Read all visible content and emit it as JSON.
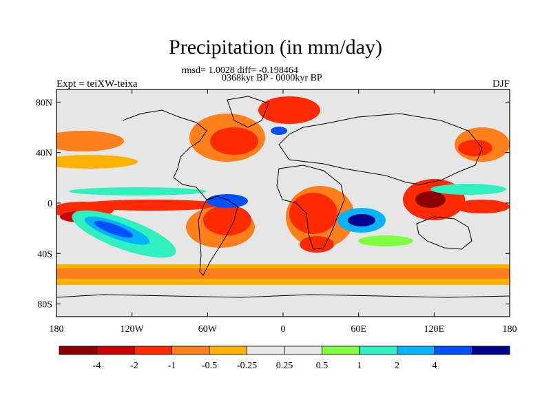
{
  "title": "Precipitation (in mm/day)",
  "subtitle_stats": "rmsd= 1.0028 diff= -0.198464",
  "subtitle_period": "0368kyr BP - 0000kyr BP",
  "experiment": "Expt = teiXW-teixa",
  "season": "DJF",
  "map": {
    "projection": "cylindrical equidistant",
    "lon_range": [
      -180,
      180
    ],
    "lat_range": [
      -90,
      90
    ],
    "background_color": "#e6e6e6",
    "lon_ticks": [
      {
        "value": -180,
        "label": "180"
      },
      {
        "value": -120,
        "label": "120W"
      },
      {
        "value": -60,
        "label": "60W"
      },
      {
        "value": 0,
        "label": "0"
      },
      {
        "value": 60,
        "label": "60E"
      },
      {
        "value": 120,
        "label": "120E"
      },
      {
        "value": 180,
        "label": "180"
      }
    ],
    "lat_ticks": [
      {
        "value": 80,
        "label": "80N"
      },
      {
        "value": 40,
        "label": "40N"
      },
      {
        "value": 0,
        "label": "0"
      },
      {
        "value": -40,
        "label": "40S"
      },
      {
        "value": -80,
        "label": "80S"
      }
    ]
  },
  "colorbar": {
    "colors": [
      "#8b0000",
      "#cc0000",
      "#ff2a00",
      "#ff7f1a",
      "#ffb300",
      "#e6e6e6",
      "#e6e6e6",
      "#80ff40",
      "#30f0c0",
      "#00b4ff",
      "#0050ff",
      "#000090"
    ],
    "labels": [
      "-4",
      "-2",
      "-1",
      "-0.5",
      "-0.25",
      "0.25",
      "0.5",
      "1",
      "2",
      "4"
    ]
  }
}
